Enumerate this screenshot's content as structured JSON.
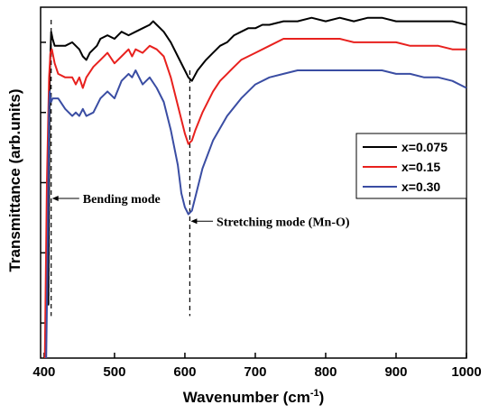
{
  "chart_data": {
    "type": "line",
    "xlabel": "Wavenumber (cm",
    "xlabel_sup": "-1",
    "xlabel_close": ")",
    "ylabel": "Transmittance (arb.units)",
    "xlim": [
      395,
      1000
    ],
    "ylim": [
      0,
      100
    ],
    "x_ticks": [
      400,
      500,
      600,
      700,
      800,
      900,
      1000
    ],
    "x_tick_labels": [
      "400",
      "500",
      "600",
      "700",
      "800",
      "900",
      "1000"
    ],
    "y_ticks": [
      90,
      70,
      50,
      30,
      10
    ],
    "grid": false,
    "legend_position": "right",
    "series": [
      {
        "name": "x=0.075",
        "color": "#000000",
        "points": [
          [
            406,
            15
          ],
          [
            408,
            80
          ],
          [
            410,
            93
          ],
          [
            412,
            91
          ],
          [
            415,
            89
          ],
          [
            420,
            89
          ],
          [
            430,
            89
          ],
          [
            440,
            90
          ],
          [
            450,
            88
          ],
          [
            455,
            86
          ],
          [
            460,
            85
          ],
          [
            465,
            87
          ],
          [
            475,
            89
          ],
          [
            480,
            91
          ],
          [
            490,
            92
          ],
          [
            500,
            91
          ],
          [
            510,
            93
          ],
          [
            520,
            92
          ],
          [
            530,
            93
          ],
          [
            540,
            94
          ],
          [
            550,
            95
          ],
          [
            555,
            96
          ],
          [
            560,
            95
          ],
          [
            570,
            93
          ],
          [
            580,
            90
          ],
          [
            590,
            86
          ],
          [
            600,
            82
          ],
          [
            605,
            80
          ],
          [
            610,
            79
          ],
          [
            618,
            82
          ],
          [
            630,
            85
          ],
          [
            640,
            87
          ],
          [
            650,
            89
          ],
          [
            660,
            90
          ],
          [
            670,
            92
          ],
          [
            680,
            93
          ],
          [
            690,
            94
          ],
          [
            700,
            94
          ],
          [
            710,
            95
          ],
          [
            720,
            95
          ],
          [
            740,
            96
          ],
          [
            760,
            96
          ],
          [
            780,
            97
          ],
          [
            800,
            96
          ],
          [
            820,
            97
          ],
          [
            840,
            96
          ],
          [
            860,
            97
          ],
          [
            880,
            97
          ],
          [
            900,
            96
          ],
          [
            920,
            96
          ],
          [
            940,
            96
          ],
          [
            960,
            96
          ],
          [
            980,
            96
          ],
          [
            1000,
            95
          ]
        ]
      },
      {
        "name": "x=0.15",
        "color": "#e8211e",
        "points": [
          [
            401,
            0
          ],
          [
            404,
            50
          ],
          [
            407,
            80
          ],
          [
            409,
            87
          ],
          [
            411,
            88
          ],
          [
            415,
            84
          ],
          [
            420,
            81
          ],
          [
            430,
            80
          ],
          [
            440,
            80
          ],
          [
            445,
            78
          ],
          [
            450,
            80
          ],
          [
            455,
            77
          ],
          [
            460,
            80
          ],
          [
            470,
            83
          ],
          [
            480,
            85
          ],
          [
            490,
            87
          ],
          [
            500,
            84
          ],
          [
            510,
            86
          ],
          [
            520,
            88
          ],
          [
            525,
            86
          ],
          [
            530,
            88
          ],
          [
            540,
            87
          ],
          [
            550,
            89
          ],
          [
            560,
            88
          ],
          [
            570,
            86
          ],
          [
            580,
            80
          ],
          [
            590,
            72
          ],
          [
            600,
            64
          ],
          [
            605,
            61
          ],
          [
            610,
            62
          ],
          [
            615,
            65
          ],
          [
            625,
            70
          ],
          [
            640,
            76
          ],
          [
            650,
            79
          ],
          [
            660,
            81
          ],
          [
            670,
            83
          ],
          [
            680,
            85
          ],
          [
            700,
            87
          ],
          [
            720,
            89
          ],
          [
            740,
            91
          ],
          [
            760,
            91
          ],
          [
            780,
            91
          ],
          [
            800,
            91
          ],
          [
            820,
            91
          ],
          [
            840,
            90
          ],
          [
            860,
            90
          ],
          [
            880,
            90
          ],
          [
            900,
            90
          ],
          [
            920,
            89
          ],
          [
            940,
            89
          ],
          [
            960,
            89
          ],
          [
            980,
            88
          ],
          [
            1000,
            88
          ]
        ]
      },
      {
        "name": "x=0.30",
        "color": "#3a4da3",
        "points": [
          [
            403,
            0
          ],
          [
            405,
            30
          ],
          [
            407,
            72
          ],
          [
            408,
            76
          ],
          [
            410,
            73
          ],
          [
            412,
            74
          ],
          [
            415,
            74
          ],
          [
            420,
            74
          ],
          [
            430,
            71
          ],
          [
            440,
            69
          ],
          [
            445,
            70
          ],
          [
            450,
            69
          ],
          [
            455,
            71
          ],
          [
            460,
            69
          ],
          [
            470,
            70
          ],
          [
            480,
            74
          ],
          [
            490,
            76
          ],
          [
            500,
            74
          ],
          [
            510,
            79
          ],
          [
            520,
            81
          ],
          [
            525,
            80
          ],
          [
            530,
            82
          ],
          [
            540,
            78
          ],
          [
            550,
            80
          ],
          [
            560,
            77
          ],
          [
            570,
            73
          ],
          [
            580,
            65
          ],
          [
            590,
            55
          ],
          [
            595,
            47
          ],
          [
            600,
            43
          ],
          [
            605,
            41
          ],
          [
            610,
            42
          ],
          [
            615,
            46
          ],
          [
            625,
            54
          ],
          [
            640,
            62
          ],
          [
            660,
            69
          ],
          [
            680,
            74
          ],
          [
            700,
            78
          ],
          [
            720,
            80
          ],
          [
            740,
            81
          ],
          [
            760,
            82
          ],
          [
            780,
            82
          ],
          [
            800,
            82
          ],
          [
            820,
            82
          ],
          [
            840,
            82
          ],
          [
            860,
            82
          ],
          [
            880,
            82
          ],
          [
            900,
            81
          ],
          [
            920,
            81
          ],
          [
            940,
            80
          ],
          [
            960,
            80
          ],
          [
            980,
            79
          ],
          [
            1000,
            77
          ]
        ]
      }
    ],
    "annotations": [
      {
        "text": "Bending mode",
        "line_x": 410,
        "text_x": 455,
        "y": 45.5
      },
      {
        "text": "Stretching mode (Mn-O)",
        "line_x": 607,
        "text_x": 645,
        "y": 39
      }
    ]
  }
}
